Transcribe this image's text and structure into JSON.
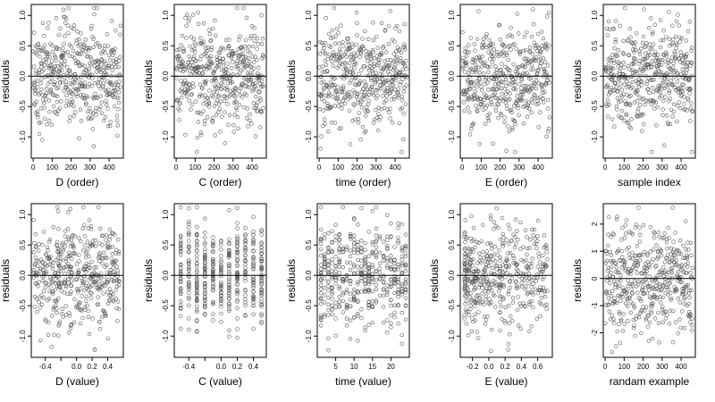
{
  "figure": {
    "ylabel": "residuals"
  },
  "chart_data": [
    {
      "type": "scatter",
      "xlabel": "D (order)",
      "ylabel": "residuals",
      "xlim": [
        -10,
        475
      ],
      "ylim": [
        -1.35,
        1.18
      ],
      "xticks": [
        0,
        100,
        200,
        300,
        400
      ],
      "yticks": [
        -1.0,
        -0.5,
        0.0,
        0.5,
        1.0
      ],
      "ytick_labels": [
        "-1.0",
        "-0.5",
        "0.0",
        "0.5",
        "1.0"
      ],
      "hline": 0,
      "x": {
        "kind": "index",
        "from": 1,
        "to": 460
      },
      "y_sd": 0.42,
      "y_range": [
        -1.25,
        1.12
      ],
      "n": 460,
      "marker": "open-circle",
      "point_color": "#555555"
    },
    {
      "type": "scatter",
      "xlabel": "C (order)",
      "ylabel": "residuals",
      "xlim": [
        -10,
        475
      ],
      "ylim": [
        -1.35,
        1.18
      ],
      "xticks": [
        0,
        100,
        200,
        300,
        400
      ],
      "yticks": [
        -1.0,
        -0.5,
        0.0,
        0.5,
        1.0
      ],
      "ytick_labels": [
        "-1.0",
        "-0.5",
        "0.0",
        "0.5",
        "1.0"
      ],
      "hline": 0,
      "x": {
        "kind": "index",
        "from": 1,
        "to": 460
      },
      "y_sd": 0.42,
      "y_range": [
        -1.25,
        1.12
      ],
      "n": 460,
      "marker": "open-circle",
      "point_color": "#555555"
    },
    {
      "type": "scatter",
      "xlabel": "time (order)",
      "ylabel": "residuals",
      "xlim": [
        -10,
        475
      ],
      "ylim": [
        -1.35,
        1.18
      ],
      "xticks": [
        0,
        100,
        200,
        300,
        400
      ],
      "yticks": [
        -1.0,
        -0.5,
        0.0,
        0.5,
        1.0
      ],
      "ytick_labels": [
        "-1.0",
        "-0.5",
        "0.0",
        "0.5",
        "1.0"
      ],
      "hline": 0,
      "x": {
        "kind": "index",
        "from": 1,
        "to": 460
      },
      "y_sd": 0.42,
      "y_range": [
        -1.25,
        1.12
      ],
      "n": 460,
      "marker": "open-circle",
      "point_color": "#555555"
    },
    {
      "type": "scatter",
      "xlabel": "E (order)",
      "ylabel": "residuals",
      "xlim": [
        -10,
        475
      ],
      "ylim": [
        -1.35,
        1.18
      ],
      "xticks": [
        0,
        100,
        200,
        300,
        400
      ],
      "yticks": [
        -1.0,
        -0.5,
        0.0,
        0.5,
        1.0
      ],
      "ytick_labels": [
        "-1.0",
        "-0.5",
        "0.0",
        "0.5",
        "1.0"
      ],
      "hline": 0,
      "x": {
        "kind": "index",
        "from": 1,
        "to": 460
      },
      "y_sd": 0.42,
      "y_range": [
        -1.25,
        1.12
      ],
      "n": 460,
      "marker": "open-circle",
      "point_color": "#555555"
    },
    {
      "type": "scatter",
      "xlabel": "sample index",
      "ylabel": "residuals",
      "xlim": [
        -10,
        475
      ],
      "ylim": [
        -1.35,
        1.18
      ],
      "xticks": [
        0,
        100,
        200,
        300,
        400
      ],
      "yticks": [
        -1.0,
        -0.5,
        0.0,
        0.5,
        1.0
      ],
      "ytick_labels": [
        "-1.0",
        "-0.5",
        "0.0",
        "0.5",
        "1.0"
      ],
      "hline": 0,
      "x": {
        "kind": "index",
        "from": 1,
        "to": 460
      },
      "y_sd": 0.42,
      "y_range": [
        -1.25,
        1.12
      ],
      "n": 460,
      "marker": "open-circle",
      "point_color": "#555555"
    },
    {
      "type": "scatter",
      "xlabel": "D (value)",
      "ylabel": "residuals",
      "xlim": [
        -0.58,
        0.6
      ],
      "ylim": [
        -1.35,
        1.18
      ],
      "xticks": [
        -0.4,
        -0.2,
        0.0,
        0.2,
        0.4
      ],
      "xtick_labels": [
        "-0.4",
        "",
        "0.0",
        "0.2",
        "0.4"
      ],
      "yticks": [
        -1.0,
        -0.5,
        0.0,
        0.5,
        1.0
      ],
      "ytick_labels": [
        "-1.0",
        "-0.5",
        "0.0",
        "0.5",
        "1.0"
      ],
      "hline": 0,
      "x": {
        "kind": "uniform",
        "range": [
          -0.55,
          0.55
        ]
      },
      "y_sd": 0.42,
      "y_range": [
        -1.25,
        1.12
      ],
      "n": 460,
      "marker": "open-circle",
      "point_color": "#555555"
    },
    {
      "type": "scatter",
      "xlabel": "C (value)",
      "ylabel": "residuals",
      "xlim": [
        -0.58,
        0.56
      ],
      "ylim": [
        -1.35,
        1.18
      ],
      "xticks": [
        -0.4,
        -0.2,
        0.0,
        0.2,
        0.4
      ],
      "xtick_labels": [
        "-0.4",
        "",
        "0.0",
        "0.2",
        "0.4"
      ],
      "yticks": [
        -1.0,
        -0.5,
        0.0,
        0.5,
        1.0
      ],
      "ytick_labels": [
        "-1.0",
        "-0.5",
        "0.0",
        "0.5",
        "1.0"
      ],
      "hline": 0,
      "x": {
        "kind": "levels",
        "values": [
          -0.5,
          -0.4,
          -0.3,
          -0.2,
          -0.1,
          0.0,
          0.1,
          0.2,
          0.3,
          0.4,
          0.5
        ]
      },
      "y_sd": 0.42,
      "y_range": [
        -1.25,
        1.12
      ],
      "n": 460,
      "marker": "open-circle",
      "point_color": "#555555"
    },
    {
      "type": "scatter",
      "xlabel": "time (value)",
      "ylabel": "residuals",
      "xlim": [
        0,
        25
      ],
      "ylim": [
        -1.35,
        1.18
      ],
      "xticks": [
        5,
        10,
        15,
        20
      ],
      "yticks": [
        -1.0,
        -0.5,
        0.0,
        0.5,
        1.0
      ],
      "ytick_labels": [
        "-1.0",
        "-0.5",
        "0.0",
        "0.5",
        "1.0"
      ],
      "hline": 0,
      "x": {
        "kind": "levels",
        "values": [
          1,
          2,
          3,
          4,
          5,
          6,
          7,
          8,
          9,
          10,
          11,
          12,
          13,
          14,
          15,
          16,
          17,
          18,
          19,
          20,
          21,
          22,
          23,
          24
        ]
      },
      "y_sd": 0.42,
      "y_range": [
        -1.25,
        1.12
      ],
      "n": 460,
      "marker": "open-circle",
      "point_color": "#555555"
    },
    {
      "type": "scatter",
      "xlabel": "E (value)",
      "ylabel": "residuals",
      "xlim": [
        -0.35,
        0.78
      ],
      "ylim": [
        -1.35,
        1.18
      ],
      "xticks": [
        -0.2,
        0.0,
        0.2,
        0.4,
        0.6
      ],
      "xtick_labels": [
        "-0.2",
        "0.0",
        "0.2",
        "0.4",
        "0.6"
      ],
      "yticks": [
        -1.0,
        -0.5,
        0.0,
        0.5,
        1.0
      ],
      "ytick_labels": [
        "-1.0",
        "-0.5",
        "0.0",
        "0.5",
        "1.0"
      ],
      "hline": 0,
      "x": {
        "kind": "skewed",
        "range": [
          -0.3,
          0.72
        ]
      },
      "y_sd": 0.42,
      "y_range": [
        -1.25,
        1.12
      ],
      "n": 460,
      "marker": "open-circle",
      "point_color": "#555555"
    },
    {
      "type": "scatter",
      "xlabel": "randam example",
      "ylabel": "residuals",
      "xlim": [
        -10,
        475
      ],
      "ylim": [
        -2.9,
        2.75
      ],
      "xticks": [
        0,
        100,
        200,
        300,
        400
      ],
      "yticks": [
        -2,
        -1,
        0,
        1,
        2
      ],
      "ytick_labels": [
        "-2",
        "-1",
        "0",
        "1",
        "2"
      ],
      "hline": 0,
      "x": {
        "kind": "index",
        "from": 1,
        "to": 460
      },
      "y_sd": 1.0,
      "y_range": [
        -2.7,
        2.6
      ],
      "n": 460,
      "marker": "open-circle",
      "point_color": "#555555"
    }
  ]
}
